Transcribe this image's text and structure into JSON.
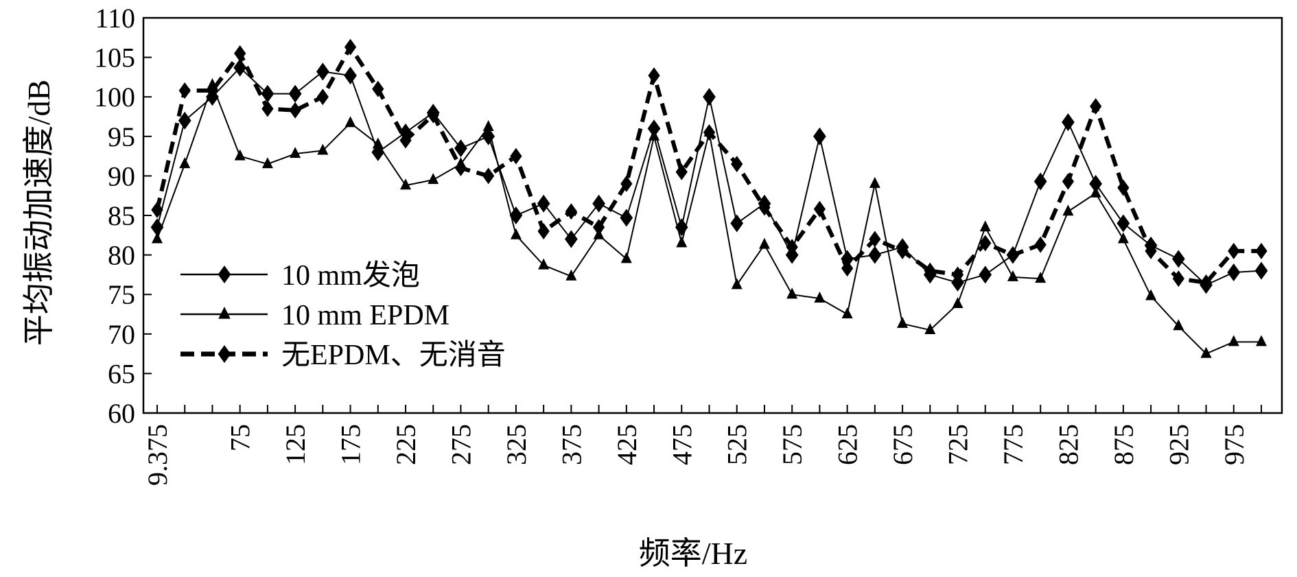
{
  "chart_data": {
    "type": "line",
    "xlabel": "频率/Hz",
    "ylabel": "平均振动加速度/dB",
    "ylim": [
      60,
      110
    ],
    "yticks": [
      "60",
      "65",
      "70",
      "75",
      "80",
      "85",
      "90",
      "95",
      "100",
      "105",
      "110"
    ],
    "xtick_labels": [
      "9.375",
      "75",
      "125",
      "175",
      "225",
      "275",
      "325",
      "375",
      "425",
      "475",
      "525",
      "575",
      "625",
      "675",
      "725",
      "775",
      "825",
      "875",
      "925",
      "975"
    ],
    "x": [
      "9.375",
      "25",
      "50",
      "75",
      "100",
      "125",
      "150",
      "175",
      "200",
      "225",
      "250",
      "275",
      "300",
      "325",
      "350",
      "375",
      "400",
      "425",
      "450",
      "475",
      "500",
      "525",
      "550",
      "575",
      "600",
      "625",
      "650",
      "675",
      "700",
      "725",
      "750",
      "775",
      "800",
      "825",
      "850",
      "875",
      "900",
      "925",
      "950",
      "975",
      "1000"
    ],
    "legend_position": "lower-left",
    "series": [
      {
        "name": "10 mm发泡",
        "line_style": "solid",
        "marker": "diamond",
        "color": "#000000",
        "values": [
          83.5,
          97,
          100,
          103.7,
          100.4,
          100.4,
          103.2,
          102.7,
          93,
          95.5,
          98,
          93.5,
          95,
          85,
          86.5,
          82,
          86.5,
          84.7,
          96,
          83.5,
          100,
          84,
          86.5,
          80,
          95,
          79.5,
          80,
          81,
          77.5,
          76.5,
          77.5,
          80,
          89.3,
          96.8,
          89,
          84,
          81.2,
          79.5,
          76.2,
          77.8,
          78
        ]
      },
      {
        "name": "10 mm EPDM",
        "line_style": "solid",
        "marker": "triangle",
        "color": "#000000",
        "values": [
          82,
          91.5,
          101.5,
          92.5,
          91.5,
          92.8,
          93.2,
          96.7,
          94,
          88.8,
          89.5,
          91.5,
          96.2,
          82.5,
          78.7,
          77.3,
          82.5,
          79.5,
          95,
          81.5,
          95.5,
          76.2,
          81.3,
          75,
          74.5,
          72.5,
          89,
          71.3,
          70.5,
          73.8,
          83.5,
          77.2,
          77,
          85.5,
          87.8,
          82,
          74.8,
          71,
          67.5,
          69,
          69
        ]
      },
      {
        "name": "无EPDM、无消音",
        "line_style": "dashed",
        "marker": "diamond",
        "color": "#000000",
        "values": [
          85.7,
          100.8,
          100.8,
          105.5,
          98.5,
          98.3,
          100,
          106.3,
          101,
          94.5,
          97.7,
          91,
          90,
          92.5,
          83,
          85.5,
          83.5,
          89,
          102.7,
          90.5,
          95.5,
          91.5,
          86,
          81,
          85.8,
          78.3,
          82,
          80.5,
          78,
          77.5,
          81.5,
          80,
          81.3,
          89.3,
          98.8,
          88.5,
          80.5,
          77,
          76.5,
          80.5,
          80.5
        ]
      }
    ]
  }
}
